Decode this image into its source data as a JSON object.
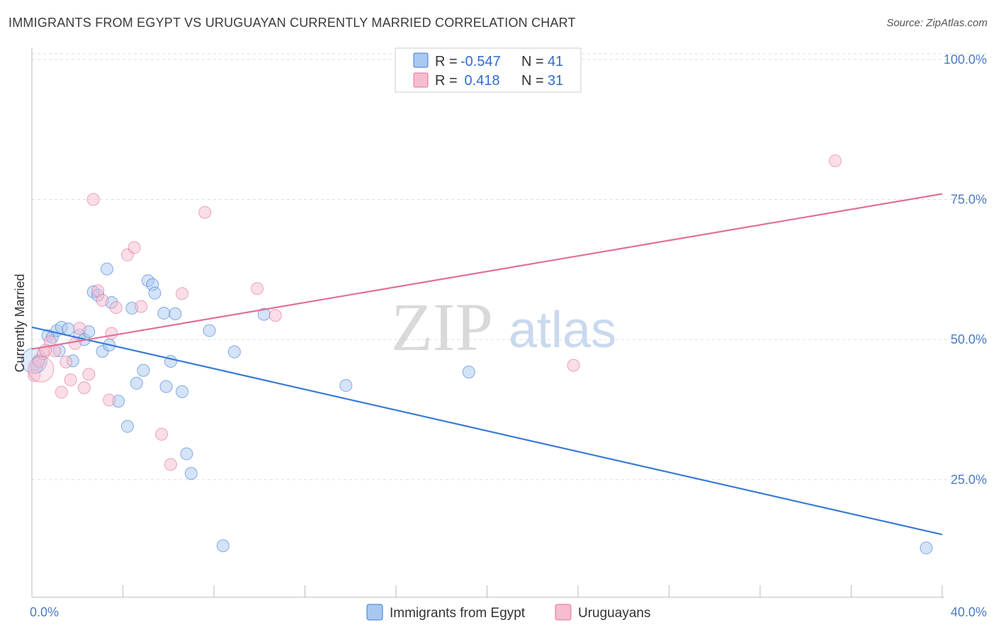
{
  "title": "IMMIGRANTS FROM EGYPT VS URUGUAYAN CURRENTLY MARRIED CORRELATION CHART",
  "source": "Source: ZipAtlas.com",
  "watermark": {
    "zip": "ZIP",
    "atlas": "atlas"
  },
  "colors": {
    "blue": "#3a7bd5",
    "blue_fill": "#a9c8f0",
    "pink": "#e07098",
    "pink_fill": "#f6bcd0",
    "grid": "#dddddd",
    "axis_text": "#4a7cc4"
  },
  "legend": {
    "rows": [
      {
        "r_label": "R = ",
        "r_value": "-0.547",
        "n_label": "N = ",
        "n_value": "41"
      },
      {
        "r_label": "R = ",
        "r_value": " 0.418",
        "n_label": "N = ",
        "n_value": "31"
      }
    ]
  },
  "chart_data": {
    "type": "scatter",
    "xlabel": "",
    "ylabel": "Currently Married",
    "xlim": [
      0,
      40
    ],
    "ylim": [
      4,
      102
    ],
    "x_tick_labels": [
      "0.0%",
      "40.0%"
    ],
    "y_ticks": [
      25,
      50,
      75,
      100
    ],
    "y_tick_labels": [
      "25.0%",
      "50.0%",
      "75.0%",
      "100.0%"
    ],
    "grid": true,
    "legend_position": "top-center",
    "series": [
      {
        "name": "Immigrants from Egypt",
        "color": "blue",
        "trend": {
          "x": [
            0,
            40
          ],
          "y": [
            52.2,
            15.2
          ]
        },
        "points": [
          [
            0.2,
            45.1
          ],
          [
            0.3,
            46.3
          ],
          [
            0.7,
            50.7
          ],
          [
            0.9,
            50.4
          ],
          [
            1.1,
            51.6
          ],
          [
            1.2,
            48.0
          ],
          [
            1.3,
            52.2
          ],
          [
            1.6,
            51.9
          ],
          [
            1.8,
            46.2
          ],
          [
            2.1,
            50.8
          ],
          [
            2.3,
            50.0
          ],
          [
            2.5,
            51.4
          ],
          [
            2.7,
            58.5
          ],
          [
            2.9,
            57.9
          ],
          [
            3.1,
            47.9
          ],
          [
            3.3,
            62.6
          ],
          [
            3.4,
            49.0
          ],
          [
            3.5,
            56.6
          ],
          [
            3.8,
            39.0
          ],
          [
            4.2,
            34.5
          ],
          [
            4.4,
            55.6
          ],
          [
            4.6,
            42.2
          ],
          [
            4.9,
            44.5
          ],
          [
            5.1,
            60.5
          ],
          [
            5.3,
            59.8
          ],
          [
            5.4,
            58.3
          ],
          [
            5.8,
            54.7
          ],
          [
            5.9,
            41.6
          ],
          [
            6.1,
            46.1
          ],
          [
            6.3,
            54.6
          ],
          [
            6.6,
            40.7
          ],
          [
            6.8,
            29.6
          ],
          [
            7.0,
            26.1
          ],
          [
            7.8,
            51.6
          ],
          [
            8.4,
            13.2
          ],
          [
            8.9,
            47.8
          ],
          [
            10.2,
            54.5
          ],
          [
            13.8,
            41.8
          ],
          [
            19.2,
            44.2
          ],
          [
            39.3,
            12.8
          ],
          [
            0.1,
            46.2
          ]
        ]
      },
      {
        "name": "Uruguayans",
        "color": "pink",
        "trend": {
          "x": [
            0,
            40
          ],
          "y": [
            48.3,
            76.0
          ]
        },
        "points": [
          [
            0.1,
            43.6
          ],
          [
            0.3,
            46.0
          ],
          [
            0.5,
            47.5
          ],
          [
            0.8,
            49.6
          ],
          [
            1.0,
            48.0
          ],
          [
            1.3,
            40.6
          ],
          [
            1.5,
            46.0
          ],
          [
            1.7,
            42.8
          ],
          [
            1.9,
            49.3
          ],
          [
            2.1,
            52.0
          ],
          [
            2.3,
            41.4
          ],
          [
            2.5,
            43.8
          ],
          [
            2.7,
            75.0
          ],
          [
            2.9,
            58.7
          ],
          [
            3.1,
            57.0
          ],
          [
            3.4,
            39.2
          ],
          [
            3.5,
            51.1
          ],
          [
            3.7,
            55.7
          ],
          [
            4.2,
            65.1
          ],
          [
            4.5,
            66.4
          ],
          [
            4.8,
            55.9
          ],
          [
            5.7,
            33.1
          ],
          [
            6.1,
            27.7
          ],
          [
            6.6,
            58.2
          ],
          [
            7.6,
            72.7
          ],
          [
            9.9,
            59.1
          ],
          [
            10.7,
            54.3
          ],
          [
            23.8,
            45.4
          ],
          [
            35.3,
            81.9
          ],
          [
            0.6,
            48.1
          ],
          [
            0.4,
            44.7
          ]
        ]
      }
    ]
  },
  "bottom_legend": [
    {
      "label": "Immigrants from Egypt",
      "color": "blue"
    },
    {
      "label": "Uruguayans",
      "color": "pink"
    }
  ]
}
